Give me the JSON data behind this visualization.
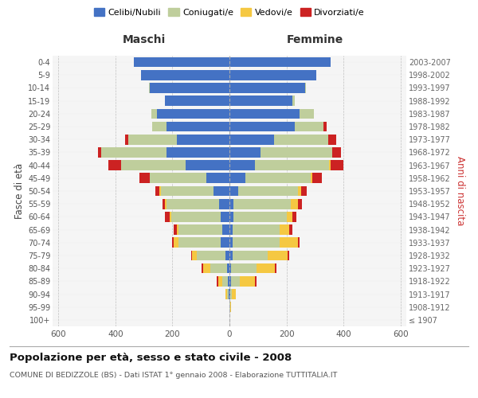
{
  "age_groups": [
    "100+",
    "95-99",
    "90-94",
    "85-89",
    "80-84",
    "75-79",
    "70-74",
    "65-69",
    "60-64",
    "55-59",
    "50-54",
    "45-49",
    "40-44",
    "35-39",
    "30-34",
    "25-29",
    "20-24",
    "15-19",
    "10-14",
    "5-9",
    "0-4"
  ],
  "birth_years": [
    "≤ 1907",
    "1908-1912",
    "1913-1917",
    "1918-1922",
    "1923-1927",
    "1928-1932",
    "1933-1937",
    "1938-1942",
    "1943-1947",
    "1948-1952",
    "1953-1957",
    "1958-1962",
    "1963-1967",
    "1968-1972",
    "1973-1977",
    "1978-1982",
    "1983-1987",
    "1988-1992",
    "1993-1997",
    "1998-2002",
    "2003-2007"
  ],
  "colors": {
    "celibi": "#4472c4",
    "coniugati": "#bfce9c",
    "vedovi": "#f5c842",
    "divorziati": "#cc2222"
  },
  "maschi": {
    "celibi": [
      1,
      1,
      3,
      5,
      8,
      15,
      30,
      25,
      30,
      35,
      55,
      80,
      155,
      220,
      185,
      220,
      255,
      225,
      280,
      310,
      335
    ],
    "coniugati": [
      0,
      0,
      5,
      20,
      60,
      100,
      150,
      155,
      175,
      185,
      185,
      200,
      225,
      230,
      170,
      50,
      20,
      2,
      2,
      0,
      0
    ],
    "vedovi": [
      0,
      0,
      5,
      15,
      25,
      15,
      15,
      5,
      5,
      5,
      5,
      0,
      0,
      0,
      0,
      0,
      0,
      0,
      0,
      0,
      0
    ],
    "divorziati": [
      0,
      0,
      0,
      5,
      5,
      5,
      5,
      10,
      15,
      10,
      15,
      35,
      45,
      10,
      10,
      0,
      0,
      0,
      0,
      0,
      0
    ]
  },
  "femmine": {
    "celibi": [
      1,
      1,
      2,
      5,
      5,
      10,
      10,
      10,
      15,
      15,
      30,
      55,
      90,
      110,
      155,
      230,
      245,
      220,
      265,
      305,
      355
    ],
    "coniugati": [
      0,
      1,
      5,
      30,
      90,
      125,
      165,
      165,
      185,
      200,
      210,
      230,
      260,
      250,
      190,
      100,
      50,
      10,
      2,
      0,
      0
    ],
    "vedovi": [
      0,
      3,
      15,
      55,
      65,
      70,
      65,
      35,
      20,
      25,
      10,
      5,
      5,
      0,
      0,
      0,
      0,
      0,
      0,
      0,
      0
    ],
    "divorziati": [
      0,
      0,
      0,
      5,
      5,
      5,
      5,
      10,
      15,
      15,
      20,
      35,
      45,
      30,
      30,
      10,
      0,
      0,
      0,
      0,
      0
    ]
  },
  "xlim": 620,
  "title": "Popolazione per età, sesso e stato civile - 2008",
  "subtitle": "COMUNE DI BEDIZZOLE (BS) - Dati ISTAT 1° gennaio 2008 - Elaborazione TUTTITALIA.IT",
  "ylabel_left": "Fasce di età",
  "ylabel_right": "Anni di nascita",
  "xlabel_left": "Maschi",
  "xlabel_right": "Femmine"
}
